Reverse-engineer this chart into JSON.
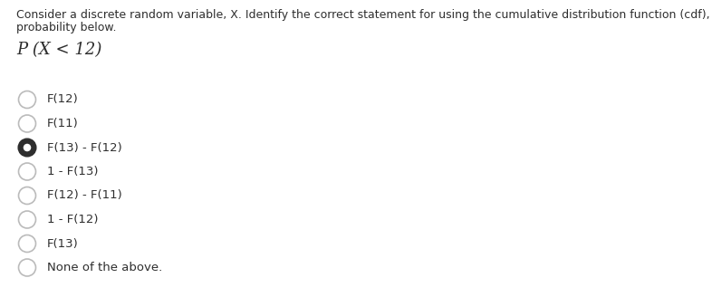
{
  "instruction_line1": "Consider a discrete random variable, X. Identify the correct statement for using the cumulative distribution function (cdf), F(x), to solve the",
  "instruction_line2": "probability below.",
  "question": "P (X < 12)",
  "options": [
    {
      "label": "F(12)",
      "selected": false
    },
    {
      "label": "F(11)",
      "selected": false
    },
    {
      "label": "F(13) - F(12)",
      "selected": true
    },
    {
      "label": "1 - F(13)",
      "selected": false
    },
    {
      "label": "F(12) - F(11)",
      "selected": false
    },
    {
      "label": "1 - F(12)",
      "selected": false
    },
    {
      "label": "F(13)",
      "selected": false
    },
    {
      "label": "None of the above.",
      "selected": false
    }
  ],
  "bg_color": "#ffffff",
  "text_color": "#2e2e2e",
  "instruction_fontsize": 9.0,
  "question_fontsize": 13,
  "option_fontsize": 9.5,
  "radio_unselected_edgecolor": "#bbbbbb",
  "radio_selected_fill": "#2e2e2e",
  "radio_selected_edge": "#2e2e2e"
}
